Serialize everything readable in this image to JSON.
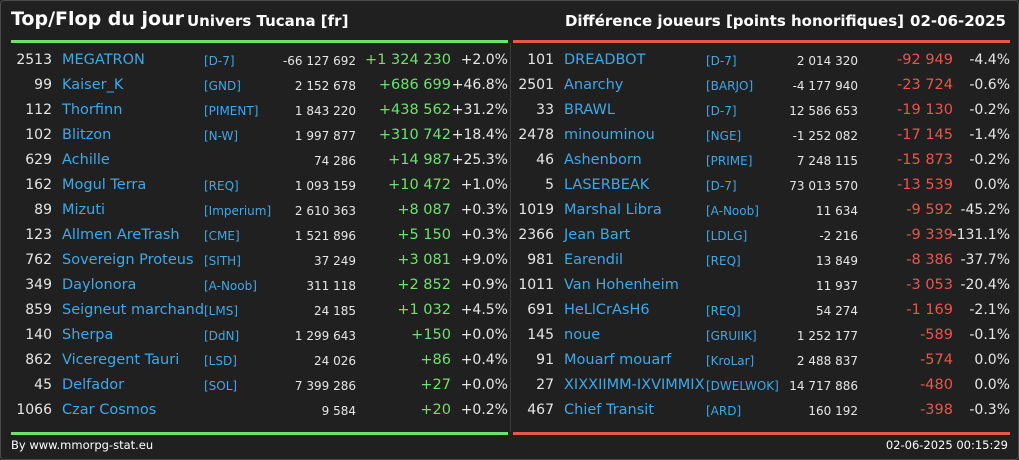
{
  "header": {
    "title": "Top/Flop du jour",
    "universe": "Univers Tucana [fr]",
    "subtitle": "Différence joueurs [points honorifiques]",
    "date": "02-06-2025"
  },
  "colors": {
    "up": "#6fe06f",
    "down": "#e8564c",
    "link": "#3ea8e8",
    "background": "#202020"
  },
  "top": [
    {
      "rank": "2513",
      "name": "MEGATRON",
      "alliance": "[D-7]",
      "total": "-66 127 692",
      "diff": "+1 324 230",
      "pct": "+2.0%"
    },
    {
      "rank": "99",
      "name": "Kaiser_K",
      "alliance": "[GND]",
      "total": "2 152 678",
      "diff": "+686 699",
      "pct": "+46.8%"
    },
    {
      "rank": "112",
      "name": "Thorfinn",
      "alliance": "[PIMENT]",
      "total": "1 843 220",
      "diff": "+438 562",
      "pct": "+31.2%"
    },
    {
      "rank": "102",
      "name": "Blitzon",
      "alliance": "[N-W]",
      "total": "1 997 877",
      "diff": "+310 742",
      "pct": "+18.4%"
    },
    {
      "rank": "629",
      "name": "Achille",
      "alliance": "",
      "total": "74 286",
      "diff": "+14 987",
      "pct": "+25.3%"
    },
    {
      "rank": "162",
      "name": "Mogul Terra",
      "alliance": "[REQ]",
      "total": "1 093 159",
      "diff": "+10 472",
      "pct": "+1.0%"
    },
    {
      "rank": "89",
      "name": "Mizuti",
      "alliance": "[Imperium]",
      "total": "2 610 363",
      "diff": "+8 087",
      "pct": "+0.3%"
    },
    {
      "rank": "123",
      "name": "Allmen AreTrash",
      "alliance": "[CME]",
      "total": "1 521 896",
      "diff": "+5 150",
      "pct": "+0.3%"
    },
    {
      "rank": "762",
      "name": "Sovereign Proteus",
      "alliance": "[SITH]",
      "total": "37 249",
      "diff": "+3 081",
      "pct": "+9.0%"
    },
    {
      "rank": "349",
      "name": "Daylonora",
      "alliance": "[A-Noob]",
      "total": "311 118",
      "diff": "+2 852",
      "pct": "+0.9%"
    },
    {
      "rank": "859",
      "name": "Seigneut marchand",
      "alliance": "[LMS]",
      "total": "24 185",
      "diff": "+1 032",
      "pct": "+4.5%"
    },
    {
      "rank": "140",
      "name": "Sherpa",
      "alliance": "[DdN]",
      "total": "1 299 643",
      "diff": "+150",
      "pct": "+0.0%"
    },
    {
      "rank": "862",
      "name": "Viceregent Tauri",
      "alliance": "[LSD]",
      "total": "24 026",
      "diff": "+86",
      "pct": "+0.4%"
    },
    {
      "rank": "45",
      "name": "Delfador",
      "alliance": "[SOL]",
      "total": "7 399 286",
      "diff": "+27",
      "pct": "+0.0%"
    },
    {
      "rank": "1066",
      "name": "Czar Cosmos",
      "alliance": "",
      "total": "9 584",
      "diff": "+20",
      "pct": "+0.2%"
    }
  ],
  "flop": [
    {
      "rank": "101",
      "name": "DREADBOT",
      "alliance": "[D-7]",
      "total": "2 014 320",
      "diff": "-92 949",
      "pct": "-4.4%"
    },
    {
      "rank": "2501",
      "name": "Anarchy",
      "alliance": "[BARJO]",
      "total": "-4 177 940",
      "diff": "-23 724",
      "pct": "-0.6%"
    },
    {
      "rank": "33",
      "name": "BRAWL",
      "alliance": "[D-7]",
      "total": "12 586 653",
      "diff": "-19 130",
      "pct": "-0.2%"
    },
    {
      "rank": "2478",
      "name": "minouminou",
      "alliance": "[NGE]",
      "total": "-1 252 082",
      "diff": "-17 145",
      "pct": "-1.4%"
    },
    {
      "rank": "46",
      "name": "Ashenborn",
      "alliance": "[PRIME]",
      "total": "7 248 115",
      "diff": "-15 873",
      "pct": "-0.2%"
    },
    {
      "rank": "5",
      "name": "LASERBEAK",
      "alliance": "[D-7]",
      "total": "73 013 570",
      "diff": "-13 539",
      "pct": "0.0%"
    },
    {
      "rank": "1019",
      "name": "Marshal Libra",
      "alliance": "[A-Noob]",
      "total": "11 634",
      "diff": "-9 592",
      "pct": "-45.2%"
    },
    {
      "rank": "2366",
      "name": "Jean Bart",
      "alliance": "[LDLG]",
      "total": "-2 216",
      "diff": "-9 339",
      "pct": "-131.1%"
    },
    {
      "rank": "981",
      "name": "Earendil",
      "alliance": "[REQ]",
      "total": "13 849",
      "diff": "-8 386",
      "pct": "-37.7%"
    },
    {
      "rank": "1011",
      "name": "Van Hohenheim",
      "alliance": "",
      "total": "11 937",
      "diff": "-3 053",
      "pct": "-20.4%"
    },
    {
      "rank": "691",
      "name": "HeLlCrAsH6",
      "alliance": "[REQ]",
      "total": "54 274",
      "diff": "-1 169",
      "pct": "-2.1%"
    },
    {
      "rank": "145",
      "name": "noue",
      "alliance": "[GRUIIK]",
      "total": "1 252 177",
      "diff": "-589",
      "pct": "-0.1%"
    },
    {
      "rank": "91",
      "name": "Mouarf mouarf",
      "alliance": "[KroLar]",
      "total": "2 488 837",
      "diff": "-574",
      "pct": "0.0%"
    },
    {
      "rank": "27",
      "name": "XIXXIIMM-IXVIMMIX",
      "alliance": "[DWELWOK]",
      "total": "14 717 886",
      "diff": "-480",
      "pct": "0.0%"
    },
    {
      "rank": "467",
      "name": "Chief Transit",
      "alliance": "[ARD]",
      "total": "160 192",
      "diff": "-398",
      "pct": "-0.3%"
    }
  ],
  "footer": {
    "source": "By www.mmorpg-stat.eu",
    "timestamp": "02-06-2025 00:15:29"
  }
}
